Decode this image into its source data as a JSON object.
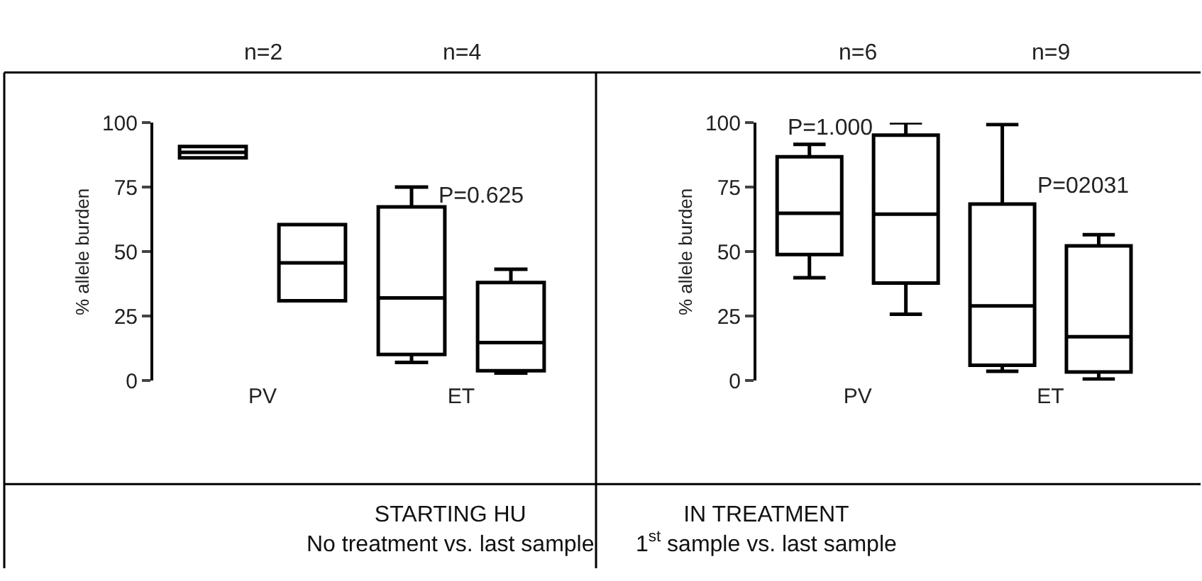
{
  "chart_data": [
    {
      "type": "box",
      "categories": [
        "PV",
        "ET"
      ],
      "series": [
        {
          "color": "#000000",
          "boxes": [
            {
              "low": 86.4,
              "q1": 86.4,
              "median": 88.5,
              "q3": 90.8,
              "high": 90.8
            },
            {
              "low": 7.1,
              "q1": 10.2,
              "median": 32.1,
              "q3": 67.4,
              "high": 75.1
            }
          ]
        },
        {
          "color": "#000000",
          "boxes": [
            {
              "low": 31,
              "q1": 31,
              "median": 45.7,
              "q3": 60.5,
              "high": 60.5
            },
            {
              "low": 3,
              "q1": 3.9,
              "median": 14.8,
              "q3": 38.1,
              "high": 43.2
            }
          ]
        }
      ],
      "ylim": [
        0,
        100
      ],
      "yticks": [
        0,
        25,
        50,
        75,
        100
      ],
      "ylabel": "% allele burden",
      "xlabel": "STARTING HU\nNo treatment vs. last sample",
      "annotations": [
        "n=2",
        "n=4",
        "P=0.625"
      ]
    },
    {
      "type": "box",
      "categories": [
        "PV",
        "ET"
      ],
      "series": [
        {
          "color": "#000000",
          "boxes": [
            {
              "low": 39.9,
              "q1": 48.9,
              "median": 64.9,
              "q3": 86.8,
              "high": 91.6
            },
            {
              "low": 3.7,
              "q1": 6,
              "median": 29,
              "q3": 68.5,
              "high": 99.3
            }
          ]
        },
        {
          "color": "#000000",
          "boxes": [
            {
              "low": 25.8,
              "q1": 37.9,
              "median": 64.6,
              "q3": 95.2,
              "high": 100
            },
            {
              "low": 0.7,
              "q1": 3.4,
              "median": 17.1,
              "q3": 52.3,
              "high": 56.6
            }
          ]
        }
      ],
      "ylim": [
        0,
        100
      ],
      "yticks": [
        0,
        25,
        50,
        75,
        100
      ],
      "ylabel": "% allele burden",
      "xlabel": "IN TREATMENT\n1$^{st}$ sample vs. last sample",
      "annotations": [
        "n=6",
        "n=9",
        "P=1.000",
        "P=02031"
      ]
    }
  ]
}
